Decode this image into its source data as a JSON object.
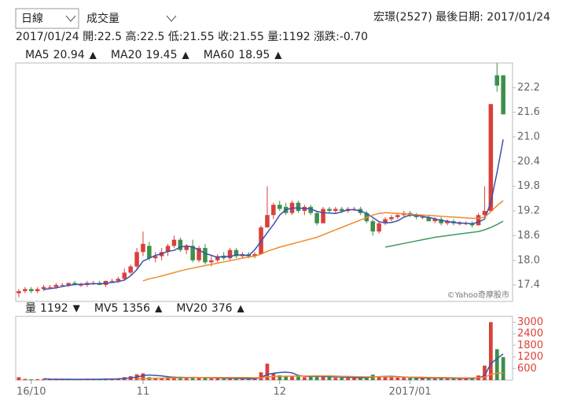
{
  "chart_data": {
    "type": "candlestick",
    "period": "日線",
    "indicator": "成交量",
    "title": "宏璟(2527)   最後日期: 2017/01/24",
    "info": "2017/01/24  開:22.5  高:22.5  低:21.55  收:21.55  量:1192  漲跌:-0.70",
    "credit": "©Yahoo奇摩股市",
    "up_color": "#d9403a",
    "down_color": "#3d8f4a",
    "xlim": [
      -0.5,
      79.5
    ],
    "xticks": [
      {
        "value": 2,
        "label": "16/10"
      },
      {
        "value": 20,
        "label": "11"
      },
      {
        "value": 42,
        "label": "12"
      },
      {
        "value": 63,
        "label": "2017/01"
      }
    ],
    "ylim": [
      17.0,
      22.8
    ],
    "yticks": [
      17.4,
      {
        "value": 18,
        "label": "18.0"
      },
      18.6,
      19.2,
      19.8,
      20.4,
      {
        "value": 21,
        "label": "21.0"
      },
      21.6,
      22.2
    ],
    "ohlc": [
      [
        17.2,
        17.3,
        17.1,
        17.25
      ],
      [
        17.25,
        17.35,
        17.2,
        17.3
      ],
      [
        17.3,
        17.35,
        17.2,
        17.25
      ],
      [
        17.25,
        17.35,
        17.2,
        17.3
      ],
      [
        17.3,
        17.4,
        17.25,
        17.35
      ],
      [
        17.35,
        17.4,
        17.3,
        17.35
      ],
      [
        17.35,
        17.45,
        17.3,
        17.4
      ],
      [
        17.4,
        17.45,
        17.35,
        17.4
      ],
      [
        17.4,
        17.45,
        17.35,
        17.45
      ],
      [
        17.45,
        17.5,
        17.4,
        17.4
      ],
      [
        17.4,
        17.45,
        17.35,
        17.4
      ],
      [
        17.4,
        17.5,
        17.35,
        17.45
      ],
      [
        17.45,
        17.5,
        17.4,
        17.45
      ],
      [
        17.45,
        17.5,
        17.4,
        17.4
      ],
      [
        17.4,
        17.5,
        17.35,
        17.5
      ],
      [
        17.5,
        17.55,
        17.45,
        17.5
      ],
      [
        17.5,
        17.6,
        17.45,
        17.55
      ],
      [
        17.55,
        17.8,
        17.5,
        17.7
      ],
      [
        17.7,
        17.9,
        17.65,
        17.85
      ],
      [
        17.85,
        18.3,
        17.8,
        18.2
      ],
      [
        18.2,
        18.7,
        18.1,
        18.4
      ],
      [
        18.35,
        18.45,
        18.0,
        18.05
      ],
      [
        18.05,
        18.2,
        17.95,
        18.1
      ],
      [
        18.1,
        18.3,
        18.0,
        18.2
      ],
      [
        18.2,
        18.4,
        18.1,
        18.35
      ],
      [
        18.35,
        18.6,
        18.3,
        18.5
      ],
      [
        18.5,
        18.55,
        18.2,
        18.25
      ],
      [
        18.25,
        18.4,
        18.15,
        18.35
      ],
      [
        18.35,
        18.5,
        17.95,
        18.0
      ],
      [
        18.0,
        18.35,
        17.95,
        18.3
      ],
      [
        18.3,
        18.4,
        17.9,
        17.95
      ],
      [
        17.95,
        18.1,
        17.85,
        18.0
      ],
      [
        18.0,
        18.15,
        17.95,
        18.1
      ],
      [
        18.1,
        18.2,
        18.0,
        18.05
      ],
      [
        18.05,
        18.3,
        18.0,
        18.25
      ],
      [
        18.25,
        18.3,
        18.05,
        18.1
      ],
      [
        18.1,
        18.2,
        18.05,
        18.15
      ],
      [
        18.15,
        18.2,
        18.05,
        18.1
      ],
      [
        18.1,
        18.2,
        18.05,
        18.15
      ],
      [
        18.15,
        18.85,
        18.15,
        18.8
      ],
      [
        18.8,
        19.8,
        18.8,
        19.1
      ],
      [
        19.1,
        19.4,
        19.0,
        19.35
      ],
      [
        19.35,
        19.45,
        19.2,
        19.25
      ],
      [
        19.3,
        19.4,
        19.1,
        19.15
      ],
      [
        19.15,
        19.45,
        19.1,
        19.4
      ],
      [
        19.4,
        19.45,
        19.15,
        19.2
      ],
      [
        19.2,
        19.35,
        19.1,
        19.3
      ],
      [
        19.3,
        19.35,
        19.1,
        19.15
      ],
      [
        19.15,
        19.2,
        18.85,
        18.9
      ],
      [
        18.9,
        19.3,
        18.9,
        19.25
      ],
      [
        19.25,
        19.3,
        19.15,
        19.2
      ],
      [
        19.2,
        19.3,
        19.15,
        19.25
      ],
      [
        19.25,
        19.3,
        19.15,
        19.2
      ],
      [
        19.2,
        19.3,
        19.15,
        19.25
      ],
      [
        19.25,
        19.3,
        19.2,
        19.25
      ],
      [
        19.25,
        19.3,
        19.1,
        19.15
      ],
      [
        19.15,
        19.2,
        18.9,
        18.95
      ],
      [
        18.95,
        19.0,
        18.6,
        18.7
      ],
      [
        18.7,
        18.95,
        18.65,
        18.9
      ],
      [
        18.9,
        19.05,
        18.85,
        19.0
      ],
      [
        19.0,
        19.1,
        18.95,
        19.05
      ],
      [
        19.05,
        19.15,
        19.0,
        19.1
      ],
      [
        19.1,
        19.2,
        19.05,
        19.15
      ],
      [
        19.15,
        19.2,
        19.05,
        19.1
      ],
      [
        19.1,
        19.15,
        19.0,
        19.05
      ],
      [
        19.05,
        19.1,
        19.0,
        19.05
      ],
      [
        19.05,
        19.1,
        18.95,
        18.95
      ],
      [
        18.95,
        19.05,
        18.9,
        19.0
      ],
      [
        19.0,
        19.05,
        18.85,
        18.9
      ],
      [
        18.9,
        19.0,
        18.85,
        18.95
      ],
      [
        18.95,
        19.0,
        18.85,
        18.9
      ],
      [
        18.9,
        18.95,
        18.85,
        18.9
      ],
      [
        18.9,
        18.95,
        18.85,
        18.9
      ],
      [
        18.9,
        18.95,
        18.8,
        18.85
      ],
      [
        18.85,
        19.15,
        18.85,
        19.1
      ],
      [
        19.1,
        19.8,
        19.05,
        19.2
      ],
      [
        19.2,
        21.8,
        19.2,
        21.8
      ],
      [
        22.5,
        22.8,
        22.1,
        22.25
      ],
      [
        22.5,
        22.5,
        21.55,
        21.55
      ]
    ],
    "ma": [
      {
        "name": "MA5",
        "color": "#3653b0",
        "last": 20.94,
        "trend": "▲",
        "values": [
          null,
          null,
          null,
          null,
          17.29,
          17.31,
          17.33,
          17.36,
          17.39,
          17.41,
          17.42,
          17.42,
          17.43,
          17.43,
          17.44,
          17.46,
          17.48,
          17.52,
          17.62,
          17.77,
          17.98,
          18.05,
          18.12,
          18.16,
          18.22,
          18.24,
          18.32,
          18.35,
          18.32,
          18.25,
          18.17,
          18.12,
          18.07,
          18.1,
          18.09,
          18.13,
          18.13,
          18.11,
          18.26,
          18.46,
          18.67,
          18.87,
          19.1,
          19.23,
          19.27,
          19.27,
          19.26,
          19.25,
          19.19,
          19.16,
          19.15,
          19.14,
          19.18,
          19.23,
          19.23,
          19.2,
          19.14,
          19.04,
          18.94,
          18.91,
          18.92,
          18.96,
          19.05,
          19.1,
          19.09,
          19.07,
          19.04,
          19.01,
          18.97,
          18.95,
          18.92,
          18.91,
          18.9,
          18.89,
          18.93,
          19.0,
          19.41,
          20.14,
          20.94
        ]
      },
      {
        "name": "MA20",
        "color": "#f08a2c",
        "last": 19.45,
        "trend": "▲",
        "values": [
          null,
          null,
          null,
          null,
          null,
          null,
          null,
          null,
          null,
          null,
          null,
          null,
          null,
          null,
          null,
          null,
          null,
          null,
          null,
          null,
          17.5,
          17.55,
          17.58,
          17.62,
          17.66,
          17.7,
          17.74,
          17.78,
          17.81,
          17.84,
          17.87,
          17.9,
          17.93,
          17.96,
          17.99,
          18.02,
          18.05,
          18.08,
          18.1,
          18.15,
          18.22,
          18.27,
          18.32,
          18.36,
          18.4,
          18.44,
          18.48,
          18.52,
          18.56,
          18.62,
          18.68,
          18.74,
          18.8,
          18.86,
          18.92,
          18.98,
          19.04,
          19.1,
          19.14,
          19.16,
          19.15,
          19.14,
          19.13,
          19.12,
          19.11,
          19.1,
          19.09,
          19.08,
          19.07,
          19.06,
          19.05,
          19.04,
          19.03,
          19.02,
          19.02,
          19.05,
          19.18,
          19.33,
          19.45
        ]
      },
      {
        "name": "MA60",
        "color": "#3f9a5c",
        "last": 18.95,
        "trend": "▲",
        "values": [
          null,
          null,
          null,
          null,
          null,
          null,
          null,
          null,
          null,
          null,
          null,
          null,
          null,
          null,
          null,
          null,
          null,
          null,
          null,
          null,
          null,
          null,
          null,
          null,
          null,
          null,
          null,
          null,
          null,
          null,
          null,
          null,
          null,
          null,
          null,
          null,
          null,
          null,
          null,
          null,
          null,
          null,
          null,
          null,
          null,
          null,
          null,
          null,
          null,
          null,
          null,
          null,
          null,
          null,
          null,
          null,
          null,
          null,
          null,
          18.32,
          18.35,
          18.38,
          18.41,
          18.44,
          18.47,
          18.5,
          18.53,
          18.56,
          18.58,
          18.6,
          18.62,
          18.64,
          18.66,
          18.68,
          18.7,
          18.74,
          18.8,
          18.87,
          18.95
        ]
      }
    ],
    "volume": {
      "name": "量",
      "last": 1192,
      "trend": "▼",
      "color": "#222222",
      "ylim": [
        0,
        3300
      ],
      "yticks": [
        600,
        1200,
        1800,
        2400,
        3000
      ],
      "values": [
        150,
        60,
        40,
        50,
        60,
        40,
        50,
        30,
        40,
        50,
        40,
        60,
        50,
        40,
        80,
        60,
        90,
        150,
        200,
        300,
        350,
        150,
        100,
        120,
        150,
        180,
        120,
        100,
        150,
        130,
        120,
        80,
        90,
        70,
        110,
        80,
        60,
        70,
        80,
        400,
        850,
        350,
        250,
        200,
        220,
        180,
        150,
        160,
        250,
        200,
        150,
        120,
        130,
        110,
        100,
        120,
        180,
        280,
        200,
        150,
        140,
        130,
        120,
        110,
        100,
        90,
        120,
        100,
        110,
        90,
        80,
        70,
        80,
        90,
        240,
        750,
        3000,
        1600,
        1192
      ],
      "ma": [
        {
          "name": "MV5",
          "color": "#3653b0",
          "last": 1356,
          "trend": "▲",
          "values": [
            null,
            null,
            null,
            null,
            72,
            50,
            46,
            46,
            44,
            42,
            42,
            46,
            46,
            44,
            56,
            58,
            64,
            84,
            116,
            160,
            232,
            266,
            242,
            220,
            174,
            140,
            142,
            134,
            140,
            136,
            124,
            120,
            114,
            98,
            94,
            88,
            82,
            78,
            74,
            138,
            292,
            350,
            390,
            410,
            374,
            240,
            200,
            182,
            192,
            188,
            172,
            166,
            162,
            142,
            126,
            116,
            128,
            162,
            178,
            186,
            190,
            180,
            160,
            138,
            124,
            114,
            108,
            104,
            104,
            102,
            98,
            90,
            86,
            84,
            112,
            226,
            852,
            1118,
            1356
          ]
        },
        {
          "name": "MV20",
          "color": "#f08a2c",
          "last": 376,
          "trend": "▲",
          "values": [
            null,
            null,
            null,
            null,
            null,
            null,
            null,
            null,
            null,
            null,
            null,
            null,
            null,
            null,
            null,
            null,
            null,
            null,
            null,
            75,
            90,
            95,
            98,
            102,
            108,
            114,
            118,
            121,
            126,
            129,
            132,
            133,
            135,
            136,
            135,
            134,
            134,
            130,
            124,
            134,
            172,
            186,
            194,
            198,
            202,
            206,
            208,
            212,
            216,
            218,
            220,
            208,
            196,
            190,
            180,
            172,
            166,
            168,
            176,
            174,
            168,
            162,
            160,
            156,
            150,
            146,
            140,
            136,
            132,
            128,
            124,
            120,
            118,
            118,
            124,
            152,
            292,
            360,
            376
          ]
        }
      ]
    }
  }
}
